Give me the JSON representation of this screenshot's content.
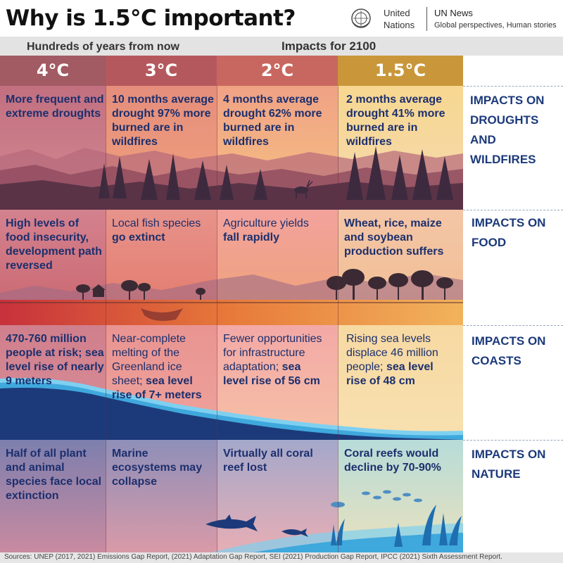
{
  "header": {
    "title": "Why is 1.5°C important?",
    "un_name_line1": "United",
    "un_name_line2": "Nations",
    "un_news": "UN News",
    "un_tagline": "Global perspectives, Human stories"
  },
  "subheader": {
    "hundreds_years": "Hundreds of years from now",
    "impacts_2100": "Impacts for 2100"
  },
  "temperatures": [
    "4°C",
    "3°C",
    "2°C",
    "1.5°C"
  ],
  "colors": {
    "temp_4": "#a25a63",
    "temp_3": "#b5585d",
    "temp_2": "#c8675f",
    "temp_15": "#c9973a",
    "text_blue": "#1c2f6e",
    "side_label_blue": "#1c3a7a",
    "sea_dark": "#1c3a7a",
    "sea_light": "#3fa8dc"
  },
  "rows": {
    "droughts": {
      "side_label": [
        "IMPACTS ON",
        "DROUGHTS",
        "AND",
        "WILDFIRES"
      ],
      "cells": [
        {
          "bold": "More frequent and extreme droughts",
          "normal": ""
        },
        {
          "bold": "10 months average drought 97% more burned are in wildfires",
          "normal": ""
        },
        {
          "bold": "4 months average drought 62% more burned are in wildfires",
          "normal": ""
        },
        {
          "bold": "2 months average drought 41% more burned are in wildfires",
          "normal": ""
        }
      ]
    },
    "food": {
      "side_label": [
        "IMPACTS ON",
        "FOOD"
      ],
      "cells": [
        {
          "lead": "",
          "bold": "High levels of food insecurity, development path reversed"
        },
        {
          "lead": "Local fish species",
          "bold": "go extinct"
        },
        {
          "lead": "Agriculture yields",
          "bold": "fall rapidly"
        },
        {
          "lead": "",
          "bold": "Wheat, rice, maize and soybean production suffers"
        }
      ]
    },
    "coasts": {
      "side_label": [
        "IMPACTS ON",
        "COASTS"
      ],
      "cells": [
        {
          "lead": "",
          "bold": "470-760 million people at risk; sea level rise of nearly 9 meters"
        },
        {
          "lead": "Near-complete melting of the Greenland ice sheet;",
          "bold": "sea level rise of 7+ meters"
        },
        {
          "lead": "Fewer opportunities  for infrastructure adaptation;",
          "bold": "sea level rise of 56 cm"
        },
        {
          "lead": "Rising sea levels displace 46 million people;",
          "bold": "sea level rise of 48 cm"
        }
      ]
    },
    "nature": {
      "side_label": [
        "IMPACTS ON",
        "NATURE"
      ],
      "cells": [
        {
          "bold": "Half of all plant and animal species face local extinction"
        },
        {
          "bold": "Marine ecosystems may collapse"
        },
        {
          "bold": "Virtually all coral reef lost"
        },
        {
          "bold": "Coral reefs would decline by 70-90%"
        }
      ]
    }
  },
  "footer": {
    "sources": "Sources: UNEP (2017, 2021) Emissions Gap Report, (2021) Adaptation Gap Report, SEI (2021) Production Gap Report, IPCC (2021) Sixth Assessment Report."
  }
}
